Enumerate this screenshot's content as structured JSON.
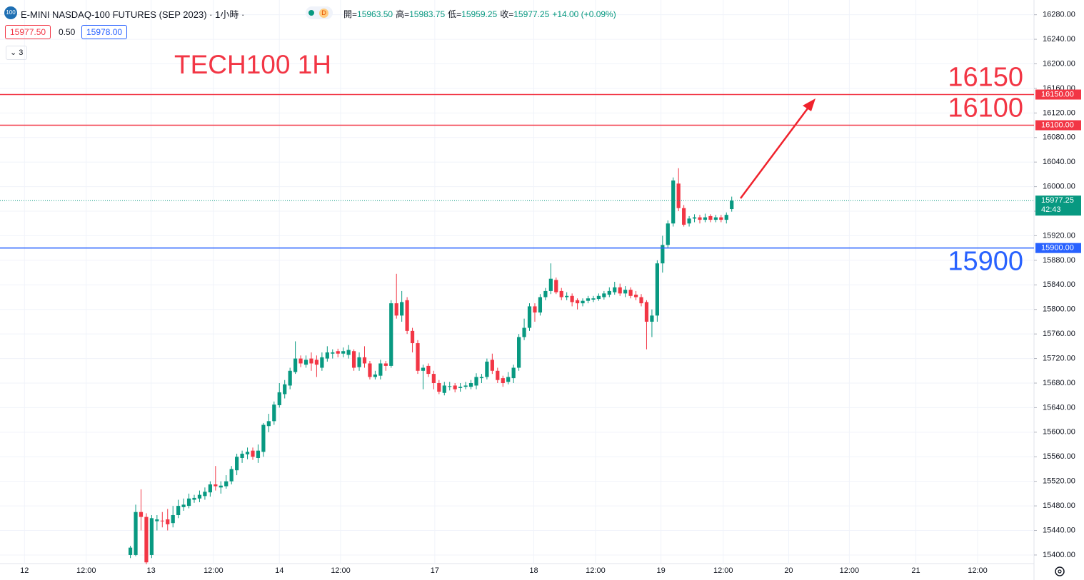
{
  "header": {
    "title": "E-MINI NASDAQ-100 FUTURES (SEP 2023) · 1小時 ·",
    "logo": "100",
    "badge": "D",
    "ohlc": [
      [
        "開=",
        "15963.50"
      ],
      [
        "高=",
        "15983.75"
      ],
      [
        "低=",
        "15959.25"
      ],
      [
        "收=",
        "15977.25"
      ]
    ],
    "change": "+14.00 (+0.09%)",
    "bid": "15977.50",
    "spread": "0.50",
    "ask": "15978.00",
    "indicators": "3"
  },
  "chart_data": {
    "type": "candlestick",
    "annotation": "TECH100 1H",
    "up_color": "#089981",
    "down_color": "#f23645",
    "grid": true,
    "open": [
      15400,
      15400,
      15470,
      15462,
      15400,
      15455,
      15456,
      15458,
      15452,
      15465,
      15478,
      15480,
      15490,
      15492,
      15496,
      15502,
      15515,
      15510,
      15512,
      15520,
      15538,
      15558,
      15564,
      15570,
      15558,
      15568,
      15610,
      15618,
      15644,
      15662,
      15676,
      15698,
      15720,
      15710,
      15720,
      15718,
      15705,
      15720,
      15728,
      15732,
      15728,
      15726,
      15732,
      15706,
      15722,
      15712,
      15690,
      15692,
      15712,
      15708,
      15810,
      15790,
      15815,
      15765,
      15745,
      15700,
      15708,
      15695,
      15680,
      15664,
      15674,
      15676,
      15672,
      15674,
      15674,
      15676,
      15688,
      15690,
      15718,
      15700,
      15688,
      15682,
      15688,
      15705,
      15755,
      15770,
      15805,
      15795,
      15820,
      15830,
      15848,
      15830,
      15820,
      15822,
      15815,
      15810,
      15814,
      15816,
      15817,
      15820,
      15824,
      15828,
      15836,
      15826,
      15832,
      15824,
      15820,
      15812,
      15780,
      15790,
      15875,
      15905,
      15940,
      16005,
      15965,
      15940,
      15948,
      15950,
      15946,
      15952,
      15946,
      15950,
      15946,
      15963.5
    ],
    "high": [
      15415,
      15482,
      15507,
      15468,
      15465,
      15465,
      15470,
      15475,
      15480,
      15490,
      15492,
      15500,
      15498,
      15505,
      15510,
      15520,
      15545,
      15520,
      15530,
      15545,
      15565,
      15570,
      15575,
      15575,
      15580,
      15615,
      15630,
      15650,
      15680,
      15685,
      15705,
      15748,
      15725,
      15725,
      15730,
      15725,
      15730,
      15740,
      15735,
      15736,
      15738,
      15742,
      15735,
      15730,
      15740,
      15716,
      15700,
      15718,
      15716,
      15815,
      15858,
      15830,
      15820,
      15770,
      15750,
      15710,
      15712,
      15700,
      15685,
      15682,
      15682,
      15680,
      15680,
      15682,
      15685,
      15696,
      15695,
      15720,
      15728,
      15705,
      15692,
      15698,
      15710,
      15760,
      15785,
      15810,
      15810,
      15825,
      15835,
      15875,
      15852,
      15835,
      15828,
      15826,
      15818,
      15818,
      15822,
      15822,
      15826,
      15830,
      15836,
      15845,
      15842,
      15838,
      15836,
      15830,
      15825,
      15815,
      15800,
      15880,
      15920,
      15945,
      16015,
      16030,
      15970,
      15952,
      15955,
      15954,
      15956,
      15955,
      15954,
      15954,
      15958,
      15983.75
    ],
    "low": [
      15395,
      15398,
      15440,
      15385,
      15395,
      15440,
      15445,
      15440,
      15445,
      15460,
      15472,
      15476,
      15485,
      15486,
      15490,
      15495,
      15505,
      15500,
      15508,
      15515,
      15530,
      15550,
      15556,
      15555,
      15550,
      15560,
      15600,
      15612,
      15640,
      15655,
      15670,
      15695,
      15706,
      15705,
      15700,
      15690,
      15700,
      15715,
      15720,
      15722,
      15722,
      15720,
      15700,
      15700,
      15705,
      15686,
      15686,
      15686,
      15700,
      15705,
      15785,
      15780,
      15760,
      15730,
      15695,
      15670,
      15690,
      15670,
      15662,
      15660,
      15668,
      15665,
      15666,
      15670,
      15670,
      15670,
      15680,
      15686,
      15695,
      15680,
      15674,
      15678,
      15680,
      15700,
      15750,
      15765,
      15780,
      15790,
      15815,
      15825,
      15825,
      15815,
      15815,
      15805,
      15800,
      15805,
      15810,
      15812,
      15814,
      15816,
      15820,
      15824,
      15822,
      15820,
      15818,
      15815,
      15805,
      15735,
      15755,
      15780,
      15860,
      15900,
      15935,
      15960,
      15935,
      15935,
      15942,
      15940,
      15942,
      15942,
      15942,
      15942,
      15940,
      15959.25
    ],
    "close": [
      15412,
      15470,
      15462,
      15388,
      15460,
      15458,
      15455,
      15450,
      15465,
      15480,
      15482,
      15492,
      15493,
      15498,
      15503,
      15515,
      15512,
      15513,
      15520,
      15540,
      15560,
      15565,
      15568,
      15560,
      15570,
      15612,
      15618,
      15645,
      15665,
      15678,
      15700,
      15720,
      15712,
      15718,
      15712,
      15710,
      15722,
      15730,
      15730,
      15728,
      15732,
      15734,
      15705,
      15722,
      15712,
      15690,
      15694,
      15712,
      15708,
      15810,
      15790,
      15812,
      15765,
      15745,
      15700,
      15705,
      15695,
      15680,
      15666,
      15676,
      15675,
      15670,
      15674,
      15676,
      15680,
      15690,
      15690,
      15715,
      15700,
      15685,
      15680,
      15690,
      15705,
      15755,
      15770,
      15805,
      15795,
      15820,
      15830,
      15850,
      15828,
      15820,
      15822,
      15812,
      15810,
      15814,
      15818,
      15818,
      15822,
      15826,
      15830,
      15836,
      15826,
      15832,
      15822,
      15820,
      15810,
      15780,
      15790,
      15875,
      15905,
      15940,
      16010,
      15965,
      15938,
      15948,
      15950,
      15946,
      15950,
      15946,
      15950,
      15946,
      15954,
      15977.25
    ],
    "xlim": [
      -24.5,
      169.8
    ],
    "xticks": [
      {
        "value": -19.9,
        "label": "12"
      },
      {
        "value": -8.3,
        "label": "12:00"
      },
      {
        "value": 3.9,
        "label": "13"
      },
      {
        "value": 15.6,
        "label": "12:00"
      },
      {
        "value": 28,
        "label": "14"
      },
      {
        "value": 39.5,
        "label": "12:00"
      },
      {
        "value": 57.2,
        "label": "17"
      },
      {
        "value": 75.8,
        "label": "18"
      },
      {
        "value": 87.4,
        "label": "12:00"
      },
      {
        "value": 99.7,
        "label": "19"
      },
      {
        "value": 111.4,
        "label": "12:00"
      },
      {
        "value": 123.7,
        "label": "20"
      },
      {
        "value": 135.1,
        "label": "12:00"
      },
      {
        "value": 147.6,
        "label": "21"
      },
      {
        "value": 159.2,
        "label": "12:00"
      }
    ],
    "ylim": [
      15386,
      16304
    ],
    "yticks": [
      {
        "value": 15400,
        "label": "15400.00"
      },
      {
        "value": 15440,
        "label": "15440.00"
      },
      {
        "value": 15480,
        "label": "15480.00"
      },
      {
        "value": 15520,
        "label": "15520.00"
      },
      {
        "value": 15560,
        "label": "15560.00"
      },
      {
        "value": 15600,
        "label": "15600.00"
      },
      {
        "value": 15640,
        "label": "15640.00"
      },
      {
        "value": 15680,
        "label": "15680.00"
      },
      {
        "value": 15720,
        "label": "15720.00"
      },
      {
        "value": 15760,
        "label": "15760.00"
      },
      {
        "value": 15800,
        "label": "15800.00"
      },
      {
        "value": 15840,
        "label": "15840.00"
      },
      {
        "value": 15880,
        "label": "15880.00"
      },
      {
        "value": 15920,
        "label": "15920.00"
      },
      {
        "value": 15960,
        "label": "15960.00"
      },
      {
        "value": 16000,
        "label": "16000.00"
      },
      {
        "value": 16040,
        "label": "16040.00"
      },
      {
        "value": 16080,
        "label": "16080.00"
      },
      {
        "value": 16120,
        "label": "16120.00"
      },
      {
        "value": 16160,
        "label": "16160.00"
      },
      {
        "value": 16200,
        "label": "16200.00"
      },
      {
        "value": 16240,
        "label": "16240.00"
      },
      {
        "value": 16280,
        "label": "16280.00"
      }
    ],
    "levels": [
      {
        "value": 16150,
        "label": "16150",
        "tag": "16150.00",
        "color": "#f23645",
        "label_side": "above"
      },
      {
        "value": 16100,
        "label": "16100",
        "tag": "16100.00",
        "color": "#f23645",
        "label_side": "above"
      },
      {
        "value": 15900,
        "label": "15900",
        "tag": "15900.00",
        "color": "#2962ff",
        "label_side": "below"
      }
    ],
    "last": {
      "value": 15977.25,
      "label": "15977.25",
      "countdown": "42:43",
      "color": "#089981"
    }
  }
}
